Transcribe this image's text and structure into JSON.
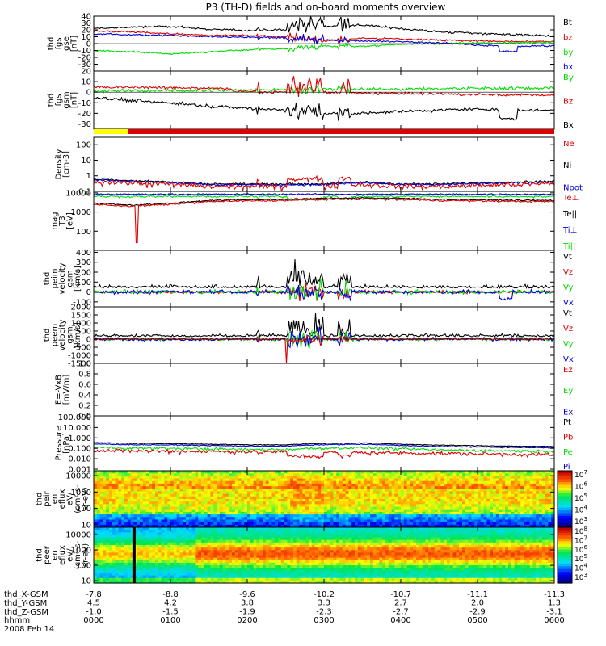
{
  "title": "P3 (TH-D) fields and on-board moments overview",
  "colors": {
    "black": "#000000",
    "red": "#dd0000",
    "green": "#00dd00",
    "blue": "#0000dd",
    "yellow": "#ffff00"
  },
  "panels": [
    {
      "key": "fgs_gse",
      "ylabel": [
        "thd",
        "fgs",
        "gse",
        "[nT]"
      ],
      "scale": "linear",
      "ylim": [
        -40,
        40
      ],
      "ticks": [
        "40",
        "30",
        "20",
        "10",
        "0",
        "-10",
        "-20",
        "-30"
      ],
      "tickvals": [
        40,
        30,
        20,
        10,
        0,
        -10,
        -20,
        -30
      ],
      "legend": [
        {
          "label": "Bt",
          "color": "black"
        },
        {
          "label": "bz",
          "color": "red"
        },
        {
          "label": "by",
          "color": "green"
        },
        {
          "label": "bx",
          "color": "blue"
        }
      ]
    },
    {
      "key": "fgs_gsm",
      "ylabel": [
        "thd",
        "fgs",
        "gsm",
        "[nT]"
      ],
      "scale": "linear",
      "ylim": [
        -35,
        20
      ],
      "ticks": [
        "20",
        "10",
        "0",
        "-10",
        "-20",
        "-30"
      ],
      "tickvals": [
        20,
        10,
        0,
        -10,
        -20,
        -30
      ],
      "legend": [
        {
          "label": "By",
          "color": "green"
        },
        {
          "label": "Bz",
          "color": "red"
        },
        {
          "label": "Bx",
          "color": "black"
        }
      ]
    },
    {
      "key": "density",
      "ylabel": [
        "Density",
        "[cm-3]"
      ],
      "scale": "log",
      "ylim": [
        0.1,
        300
      ],
      "ticks": [
        "100",
        "10",
        "1",
        "0.1"
      ],
      "tickvals": [
        100,
        10,
        1,
        0.1
      ],
      "legend": [
        {
          "label": "Ne",
          "color": "red"
        },
        {
          "label": "Ni",
          "color": "black"
        },
        {
          "label": "Npot",
          "color": "blue"
        }
      ]
    },
    {
      "key": "temp",
      "ylabel": [
        "mag",
        "T3",
        "[eV]"
      ],
      "scale": "log",
      "ylim": [
        10,
        12000
      ],
      "ticks": [
        "10000",
        "1000",
        "100"
      ],
      "tickvals": [
        10000,
        1000,
        100
      ],
      "legend": [
        {
          "label": "Te⊥",
          "color": "red"
        },
        {
          "label": "Te||",
          "color": "black"
        },
        {
          "label": "Ti⊥",
          "color": "blue"
        },
        {
          "label": "Ti||",
          "color": "green"
        }
      ]
    },
    {
      "key": "peim_vel",
      "ylabel": [
        "thd",
        "peim",
        "velocity",
        "gsm",
        "[km/s]"
      ],
      "scale": "linear",
      "ylim": [
        -150,
        420
      ],
      "ticks": [
        "400",
        "300",
        "200",
        "100",
        "0",
        "-100"
      ],
      "tickvals": [
        400,
        300,
        200,
        100,
        0,
        -100
      ],
      "legend": [
        {
          "label": "Vt",
          "color": "black"
        },
        {
          "label": "Vz",
          "color": "red"
        },
        {
          "label": "Vy",
          "color": "green"
        },
        {
          "label": "Vx",
          "color": "blue"
        }
      ]
    },
    {
      "key": "peem_vel",
      "ylabel": [
        "thd",
        "peem",
        "velocity",
        "gsm",
        "[km/s]"
      ],
      "scale": "linear",
      "ylim": [
        -1500,
        2000
      ],
      "ticks": [
        "2000",
        "1500",
        "1000",
        "500",
        "0",
        "-500",
        "-1000",
        "-1500"
      ],
      "tickvals": [
        2000,
        1500,
        1000,
        500,
        0,
        -500,
        -1000,
        -1500
      ],
      "legend": [
        {
          "label": "Vt",
          "color": "black"
        },
        {
          "label": "Vz",
          "color": "red"
        },
        {
          "label": "Vy",
          "color": "green"
        },
        {
          "label": "Vx",
          "color": "blue"
        }
      ]
    },
    {
      "key": "efield",
      "ylabel": [
        "E=-VxB",
        "[mV/m]"
      ],
      "scale": "linear",
      "ylim": [
        0,
        1
      ],
      "ticks": [
        "1.0",
        "0.8",
        "0.6",
        "0.4",
        "0.2",
        "0.0"
      ],
      "tickvals": [
        1.0,
        0.8,
        0.6,
        0.4,
        0.2,
        0.0
      ],
      "legend": [
        {
          "label": "Ez",
          "color": "red"
        },
        {
          "label": "Ey",
          "color": "green"
        },
        {
          "label": "Ex",
          "color": "blue"
        }
      ]
    },
    {
      "key": "pressure",
      "ylabel": [
        "Pressure",
        "[nPa]"
      ],
      "scale": "log",
      "ylim": [
        0.0007,
        130
      ],
      "ticks": [
        "100.000",
        "10.000",
        "1.000",
        "0.100",
        "0.010",
        "0.001"
      ],
      "tickvals": [
        100,
        10,
        1,
        0.1,
        0.01,
        0.001
      ],
      "legend": [
        {
          "label": "Pt",
          "color": "black"
        },
        {
          "label": "Pb",
          "color": "red"
        },
        {
          "label": "Pe",
          "color": "green"
        },
        {
          "label": "Pi",
          "color": "blue"
        }
      ]
    },
    {
      "key": "peir_eflux",
      "ylabel": [
        "thd",
        "peir",
        "en",
        "eflux",
        "eV/",
        "(cm^2-s-",
        "sr-eV)"
      ],
      "scale": "log",
      "ylim": [
        7,
        20000
      ],
      "ticks": [
        "10000",
        "1000",
        "100",
        "10"
      ],
      "tickvals": [
        10000,
        1000,
        100,
        10
      ],
      "spectrogram": true,
      "colorbar": [
        "10^7",
        "10^6",
        "10^5",
        "10^4",
        "10^3"
      ]
    },
    {
      "key": "peer_eflux",
      "ylabel": [
        "thd",
        "peer",
        "en",
        "eflux",
        "eV/",
        "(cm^2-s-",
        "sr-eV)"
      ],
      "scale": "log",
      "ylim": [
        7,
        30000
      ],
      "ticks": [
        "10000",
        "1000",
        "100",
        "10"
      ],
      "tickvals": [
        10000,
        1000,
        100,
        10
      ],
      "spectrogram": true,
      "colorbar": [
        "10^8",
        "10^7",
        "10^6",
        "10^5",
        "10^4",
        "10^3"
      ]
    }
  ],
  "mode_bar": {
    "colors": [
      "yellow",
      "red"
    ],
    "switch_hhmm": "0012"
  },
  "ephemeris": {
    "labels": [
      "thd_X-GSM",
      "thd_Y-GSM",
      "thd_Z-GSM",
      "hhmm",
      "2008 Feb 14"
    ],
    "columns": [
      {
        "x": "-7.8",
        "y": "4.5",
        "z": "-1.0",
        "t": "0000"
      },
      {
        "x": "-8.8",
        "y": "4.2",
        "z": "-1.5",
        "t": "0100"
      },
      {
        "x": "-9.6",
        "y": "3.8",
        "z": "-1.9",
        "t": "0200"
      },
      {
        "x": "-10.2",
        "y": "3.3",
        "z": "-2.3",
        "t": "0300"
      },
      {
        "x": "-10.7",
        "y": "2.7",
        "z": "-2.7",
        "t": "0400"
      },
      {
        "x": "-11.1",
        "y": "2.0",
        "z": "-2.9",
        "t": "0500"
      },
      {
        "x": "-11.3",
        "y": "1.3",
        "z": "-3.1",
        "t": "0600"
      }
    ]
  },
  "chart_data": {
    "type": "line",
    "title": "P3 (TH-D) fields and on-board moments overview",
    "x_time_hhmm": [
      "0000",
      "0030",
      "0100",
      "0130",
      "0200",
      "0230",
      "0300",
      "0330",
      "0400",
      "0430",
      "0500",
      "0530",
      "0600"
    ],
    "series_sampled": {
      "Bt_nT": [
        22,
        24,
        25,
        21,
        19,
        20,
        25,
        27,
        22,
        17,
        15,
        13,
        11
      ],
      "gse_bz_nT": [
        18,
        17,
        14,
        12,
        12,
        10,
        4,
        8,
        7,
        5,
        4,
        3,
        3
      ],
      "gse_by_nT": [
        -10,
        -12,
        -15,
        -12,
        -9,
        -7,
        -4,
        -4,
        -1,
        0,
        1,
        1,
        2
      ],
      "gse_bx_nT": [
        14,
        13,
        12,
        10,
        9,
        8,
        5,
        4,
        3,
        1,
        -2,
        -4,
        -3
      ],
      "gsm_Bx_nT": [
        -5,
        -8,
        -10,
        -13,
        -15,
        -17,
        -20,
        -20,
        -18,
        -17,
        -16,
        -17,
        -17
      ],
      "Ni_cm3": [
        0.6,
        0.5,
        0.4,
        0.3,
        0.3,
        0.3,
        0.3,
        0.4,
        0.3,
        0.3,
        0.35,
        0.4,
        0.45
      ],
      "Te_perp_eV": [
        2500,
        2000,
        2500,
        3500,
        3800,
        4000,
        4500,
        4800,
        4500,
        4000,
        3800,
        3600,
        3500
      ],
      "Pt_nPa": [
        0.35,
        0.3,
        0.28,
        0.25,
        0.22,
        0.22,
        0.3,
        0.33,
        0.25,
        0.2,
        0.18,
        0.16,
        0.15
      ]
    }
  }
}
